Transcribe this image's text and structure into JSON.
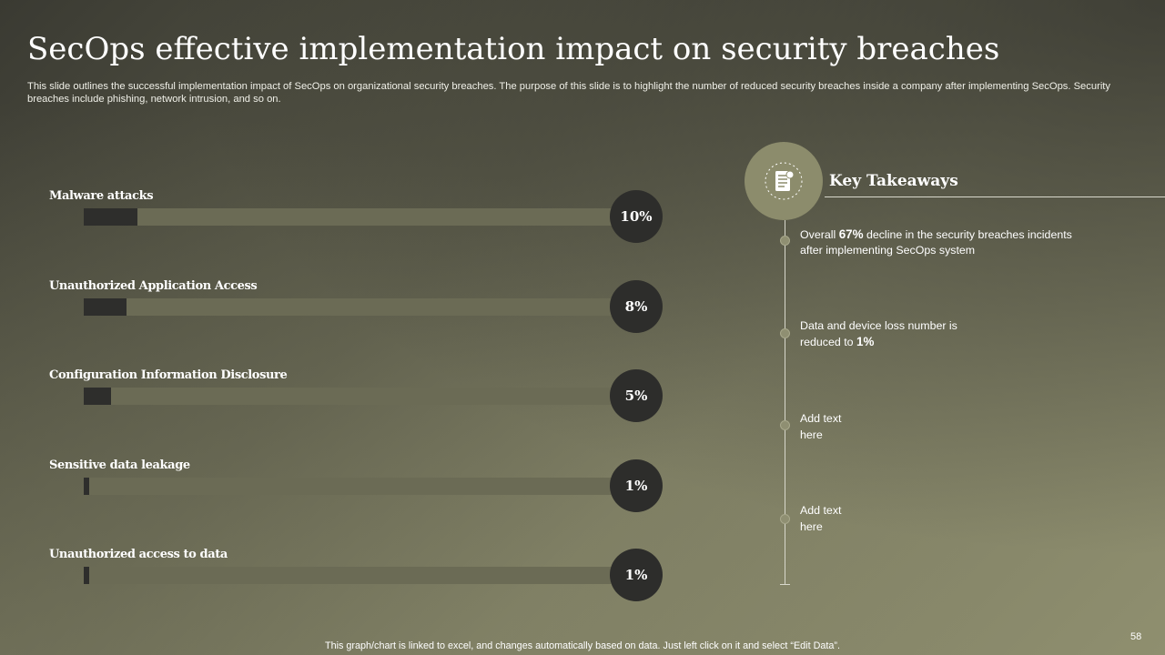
{
  "title": "SecOps effective implementation impact on security breaches",
  "subtitle": "This slide outlines the successful implementation impact of SecOps on organizational security breaches. The purpose of this slide is to highlight the number of reduced security breaches inside a company after implementing SecOps. Security breaches include phishing, network intrusion, and so on.",
  "chart_data": {
    "type": "bar",
    "orientation": "horizontal",
    "categories": [
      "Malware attacks",
      "Unauthorized Application Access",
      "Configuration Information Disclosure",
      "Sensitive data leakage",
      "Unauthorized access to data"
    ],
    "values": [
      10,
      8,
      5,
      1,
      1
    ],
    "value_labels": [
      "10%",
      "8%",
      "5%",
      "1%",
      "1%"
    ],
    "xlim": [
      0,
      100
    ],
    "grid": false,
    "legend": "none"
  },
  "key_takeaways": {
    "icon": "document-icon",
    "title": "Key Takeaways",
    "items": [
      {
        "pre": "Overall ",
        "bold": "67%",
        "post": " decline in the security breaches incidents after implementing SecOps system"
      },
      {
        "pre": "Data and device loss number is reduced to ",
        "bold": "1%",
        "post": ""
      },
      {
        "pre": "Add text here",
        "bold": "",
        "post": ""
      },
      {
        "pre": "Add text here",
        "bold": "",
        "post": ""
      }
    ]
  },
  "footer": "This graph/chart is linked to excel, and changes automatically based on data. Just left click on it and select “Edit Data”.",
  "page_number": "58",
  "colors": {
    "bar_fill": "#2e2e2c",
    "bar_track": "#6b6b55",
    "circle": "#2d2d2b",
    "accent": "#8c8c6c"
  }
}
